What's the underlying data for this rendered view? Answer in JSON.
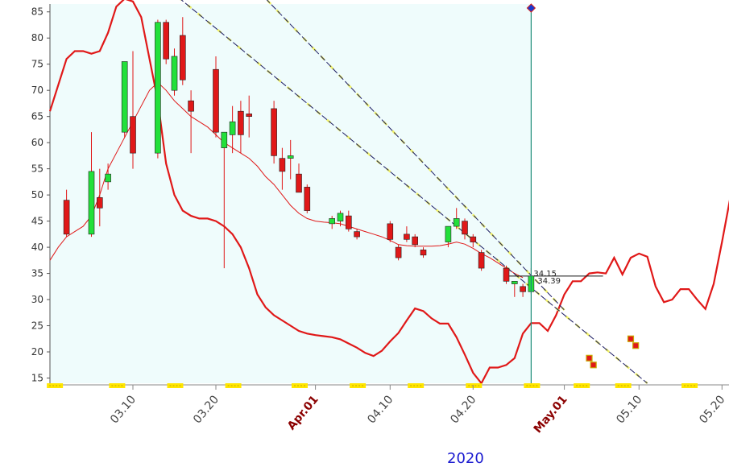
{
  "chart_data": {
    "type": "candlestick",
    "year_label": "2020",
    "colors": {
      "up": "#22e03a",
      "down": "#e01818",
      "band": "#e01818",
      "shade": "#effcfc",
      "cursor": "#1e8c78",
      "trend": "#1a1a60",
      "trend_highlight": "#eeee55",
      "marker": "#ffe600"
    },
    "y_axis": {
      "min": 14,
      "max": 86.5,
      "ticks": [
        15,
        20,
        25,
        30,
        35,
        40,
        45,
        50,
        55,
        60,
        65,
        70,
        75,
        80,
        85
      ]
    },
    "x_ticks": [
      {
        "label": "03.10",
        "day": 10,
        "month_start": false
      },
      {
        "label": "03.20",
        "day": 20,
        "month_start": false
      },
      {
        "label": "Apr.01",
        "day": 32,
        "month_start": true
      },
      {
        "label": "04.10",
        "day": 41,
        "month_start": false
      },
      {
        "label": "04.20",
        "day": 51,
        "month_start": false
      },
      {
        "label": "May.01",
        "day": 62,
        "month_start": true
      },
      {
        "label": "05.10",
        "day": 71,
        "month_start": false
      },
      {
        "label": "05.20",
        "day": 81,
        "month_start": false
      }
    ],
    "candles": [
      {
        "day": 2,
        "open": 49,
        "high": 51,
        "low": 42,
        "close": 42.5
      },
      {
        "day": 5,
        "open": 42.5,
        "high": 62,
        "low": 42,
        "close": 54.5
      },
      {
        "day": 6,
        "open": 49.5,
        "high": 55,
        "low": 44,
        "close": 47.5
      },
      {
        "day": 7,
        "open": 52.5,
        "high": 56,
        "low": 51,
        "close": 54
      },
      {
        "day": 9,
        "open": 62,
        "high": 75.5,
        "low": 61,
        "close": 75.5
      },
      {
        "day": 10,
        "open": 65,
        "high": 77.5,
        "low": 55,
        "close": 58
      },
      {
        "day": 13,
        "open": 58,
        "high": 83.5,
        "low": 57,
        "close": 83
      },
      {
        "day": 14,
        "open": 83,
        "high": 83.5,
        "low": 75,
        "close": 76
      },
      {
        "day": 15,
        "open": 70,
        "high": 78,
        "low": 69,
        "close": 76.5
      },
      {
        "day": 16,
        "open": 80.5,
        "high": 84,
        "low": 71,
        "close": 72
      },
      {
        "day": 17,
        "open": 68,
        "high": 70,
        "low": 58,
        "close": 66
      },
      {
        "day": 20,
        "open": 74,
        "high": 76.5,
        "low": 61,
        "close": 62
      },
      {
        "day": 21,
        "open": 59,
        "high": 62,
        "low": 36,
        "close": 62
      },
      {
        "day": 22,
        "open": 61.5,
        "high": 67,
        "low": 58,
        "close": 64
      },
      {
        "day": 23,
        "open": 66,
        "high": 68,
        "low": 58,
        "close": 61.5
      },
      {
        "day": 24,
        "open": 65.5,
        "high": 69,
        "low": 61,
        "close": 65
      },
      {
        "day": 27,
        "open": 66.5,
        "high": 68,
        "low": 56,
        "close": 57.5
      },
      {
        "day": 28,
        "open": 57,
        "high": 59,
        "low": 51,
        "close": 54.5
      },
      {
        "day": 29,
        "open": 57,
        "high": 60.5,
        "low": 53,
        "close": 57.5
      },
      {
        "day": 30,
        "open": 54,
        "high": 56,
        "low": 51,
        "close": 50.5
      },
      {
        "day": 31,
        "open": 51.5,
        "high": 52,
        "low": 46.5,
        "close": 47
      },
      {
        "day": 34,
        "open": 44.5,
        "high": 46,
        "low": 43.5,
        "close": 45.5
      },
      {
        "day": 35,
        "open": 45,
        "high": 47,
        "low": 44,
        "close": 46.5
      },
      {
        "day": 36,
        "open": 46,
        "high": 47,
        "low": 43,
        "close": 43.5
      },
      {
        "day": 37,
        "open": 43,
        "high": 43.5,
        "low": 41.5,
        "close": 42
      },
      {
        "day": 41,
        "open": 44.5,
        "high": 45,
        "low": 41,
        "close": 41.5
      },
      {
        "day": 42,
        "open": 40,
        "high": 40.5,
        "low": 37.5,
        "close": 38
      },
      {
        "day": 43,
        "open": 42.5,
        "high": 44,
        "low": 41,
        "close": 41.5
      },
      {
        "day": 44,
        "open": 42,
        "high": 42.5,
        "low": 40,
        "close": 40.5
      },
      {
        "day": 45,
        "open": 39.5,
        "high": 40,
        "low": 38,
        "close": 38.5
      },
      {
        "day": 48,
        "open": 41,
        "high": 44,
        "low": 40,
        "close": 44
      },
      {
        "day": 49,
        "open": 44,
        "high": 47.5,
        "low": 43.5,
        "close": 45.5
      },
      {
        "day": 50,
        "open": 45,
        "high": 45.5,
        "low": 41.5,
        "close": 42.5
      },
      {
        "day": 51,
        "open": 42,
        "high": 42.5,
        "low": 40,
        "close": 41
      },
      {
        "day": 52,
        "open": 39,
        "high": 39.5,
        "low": 35.5,
        "close": 36
      },
      {
        "day": 55,
        "open": 36,
        "high": 36.5,
        "low": 33,
        "close": 33.5
      },
      {
        "day": 56,
        "open": 33,
        "high": 33.5,
        "low": 30.5,
        "close": 33.5
      },
      {
        "day": 57,
        "open": 32.5,
        "high": 33,
        "low": 30.5,
        "close": 31.5
      },
      {
        "day": 58,
        "open": 31.5,
        "high": 36,
        "low": 31,
        "close": 34.5
      }
    ],
    "upper_band": [
      [
        0,
        66
      ],
      [
        1,
        71
      ],
      [
        2,
        76
      ],
      [
        3,
        77.5
      ],
      [
        4,
        77.5
      ],
      [
        5,
        77
      ],
      [
        6,
        77.5
      ],
      [
        7,
        81
      ],
      [
        8,
        86
      ],
      [
        9,
        87.5
      ],
      [
        10,
        87
      ],
      [
        11,
        84
      ],
      [
        12,
        76
      ],
      [
        13,
        68
      ],
      [
        14,
        56
      ],
      [
        15,
        50
      ],
      [
        16,
        47
      ],
      [
        17,
        46
      ],
      [
        18,
        45.5
      ],
      [
        19,
        45.5
      ],
      [
        20,
        45
      ],
      [
        21,
        44
      ],
      [
        22,
        42.5
      ],
      [
        23,
        40
      ],
      [
        24,
        36
      ],
      [
        25,
        31
      ],
      [
        26,
        28.5
      ],
      [
        27,
        27
      ],
      [
        28,
        26
      ],
      [
        29,
        25
      ],
      [
        30,
        24
      ],
      [
        31,
        23.5
      ],
      [
        32,
        23.2
      ],
      [
        33,
        23
      ],
      [
        34,
        22.8
      ],
      [
        35,
        22.4
      ],
      [
        36,
        21.6
      ],
      [
        37,
        20.8
      ],
      [
        38,
        19.8
      ],
      [
        39,
        19.2
      ],
      [
        40,
        20.2
      ],
      [
        41,
        22
      ],
      [
        42,
        23.6
      ],
      [
        43,
        26
      ],
      [
        44,
        28.3
      ],
      [
        45,
        27.8
      ],
      [
        46,
        26.4
      ],
      [
        47,
        25.4
      ],
      [
        48,
        25.4
      ],
      [
        49,
        22.8
      ],
      [
        50,
        19.5
      ],
      [
        51,
        16
      ],
      [
        52,
        14
      ],
      [
        53,
        17
      ],
      [
        54,
        17
      ],
      [
        55,
        17.5
      ],
      [
        56,
        18.8
      ],
      [
        57,
        23.5
      ],
      [
        58,
        25.5
      ],
      [
        59,
        25.5
      ],
      [
        60,
        24
      ],
      [
        61,
        27
      ],
      [
        62,
        31
      ],
      [
        63,
        33.5
      ],
      [
        64,
        33.5
      ],
      [
        65,
        35
      ],
      [
        66,
        35.2
      ],
      [
        67,
        35
      ],
      [
        68,
        38
      ],
      [
        69,
        34.8
      ],
      [
        70,
        38
      ],
      [
        71,
        38.8
      ],
      [
        72,
        38.2
      ],
      [
        73,
        32.5
      ],
      [
        74,
        29.5
      ],
      [
        75,
        30
      ],
      [
        76,
        32
      ],
      [
        77,
        32
      ],
      [
        78,
        30
      ],
      [
        79,
        28.2
      ],
      [
        80,
        33
      ],
      [
        81,
        41
      ],
      [
        82,
        49.5
      ]
    ],
    "mid_line": [
      [
        0,
        37.5
      ],
      [
        1,
        40
      ],
      [
        2,
        42
      ],
      [
        3,
        43
      ],
      [
        4,
        44
      ],
      [
        5,
        46
      ],
      [
        6,
        50
      ],
      [
        7,
        55
      ],
      [
        8,
        58
      ],
      [
        9,
        61
      ],
      [
        10,
        64
      ],
      [
        11,
        67
      ],
      [
        12,
        70
      ],
      [
        13,
        71.5
      ],
      [
        14,
        70
      ],
      [
        15,
        68
      ],
      [
        16,
        66.5
      ],
      [
        17,
        65
      ],
      [
        18,
        64
      ],
      [
        19,
        63
      ],
      [
        20,
        61.5
      ],
      [
        21,
        60
      ],
      [
        22,
        59
      ],
      [
        23,
        58
      ],
      [
        24,
        57
      ],
      [
        25,
        55.5
      ],
      [
        26,
        53.5
      ],
      [
        27,
        52
      ],
      [
        28,
        50
      ],
      [
        29,
        48
      ],
      [
        30,
        46.5
      ],
      [
        31,
        45.5
      ],
      [
        32,
        45
      ],
      [
        33,
        44.8
      ],
      [
        34,
        44.7
      ],
      [
        35,
        44.5
      ],
      [
        36,
        44
      ],
      [
        37,
        43.5
      ],
      [
        38,
        43
      ],
      [
        39,
        42.5
      ],
      [
        40,
        42
      ],
      [
        41,
        41.3
      ],
      [
        42,
        40.5
      ],
      [
        43,
        40.3
      ],
      [
        44,
        40.2
      ],
      [
        45,
        40.2
      ],
      [
        46,
        40.2
      ],
      [
        47,
        40.3
      ],
      [
        48,
        40.6
      ],
      [
        49,
        41
      ],
      [
        50,
        40.6
      ],
      [
        51,
        39.8
      ],
      [
        52,
        38.8
      ],
      [
        53,
        38
      ],
      [
        54,
        37
      ],
      [
        55,
        36
      ],
      [
        56,
        35
      ],
      [
        57,
        34.2
      ]
    ],
    "trend_lines": [
      {
        "from": [
          13,
          91
        ],
        "to": [
          72,
          14
        ]
      },
      {
        "from": [
          23,
          92.5
        ],
        "to": [
          62,
          28
        ]
      },
      {
        "from": [
          55,
          34.5
        ],
        "to": [
          62,
          34.5
        ]
      }
    ],
    "markers": [
      {
        "day": 65,
        "value": 18.8,
        "fill": "#e01818"
      },
      {
        "day": 65.5,
        "value": 17.5,
        "fill": "#e01818"
      },
      {
        "day": 70,
        "value": 22.5,
        "fill": "#e01818"
      },
      {
        "day": 70.6,
        "value": 21.2,
        "fill": "#e01818"
      }
    ],
    "annotations": [
      "34.15",
      "34.39"
    ],
    "cursor_day": 58
  }
}
